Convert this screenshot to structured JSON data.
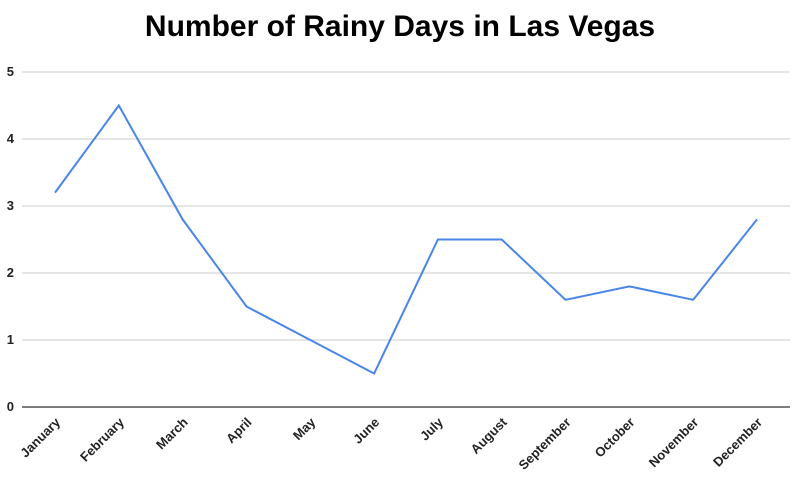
{
  "chart_data": {
    "type": "line",
    "title": "Number of Rainy Days in Las Vegas",
    "xlabel": "",
    "ylabel": "",
    "categories": [
      "January",
      "February",
      "March",
      "April",
      "May",
      "June",
      "July",
      "August",
      "September",
      "October",
      "November",
      "December"
    ],
    "series": [
      {
        "values": [
          3.2,
          4.5,
          2.8,
          1.5,
          1.0,
          0.5,
          2.5,
          2.5,
          1.6,
          1.8,
          1.6,
          2.8
        ]
      }
    ],
    "y_ticks": [
      "0",
      "1",
      "2",
      "3",
      "4",
      "5"
    ],
    "ylim": [
      0,
      5
    ],
    "grid": true,
    "legend": "none",
    "colors": {
      "line": "#4a86e8",
      "grid": "#cccccc",
      "axis": "#333333"
    }
  }
}
